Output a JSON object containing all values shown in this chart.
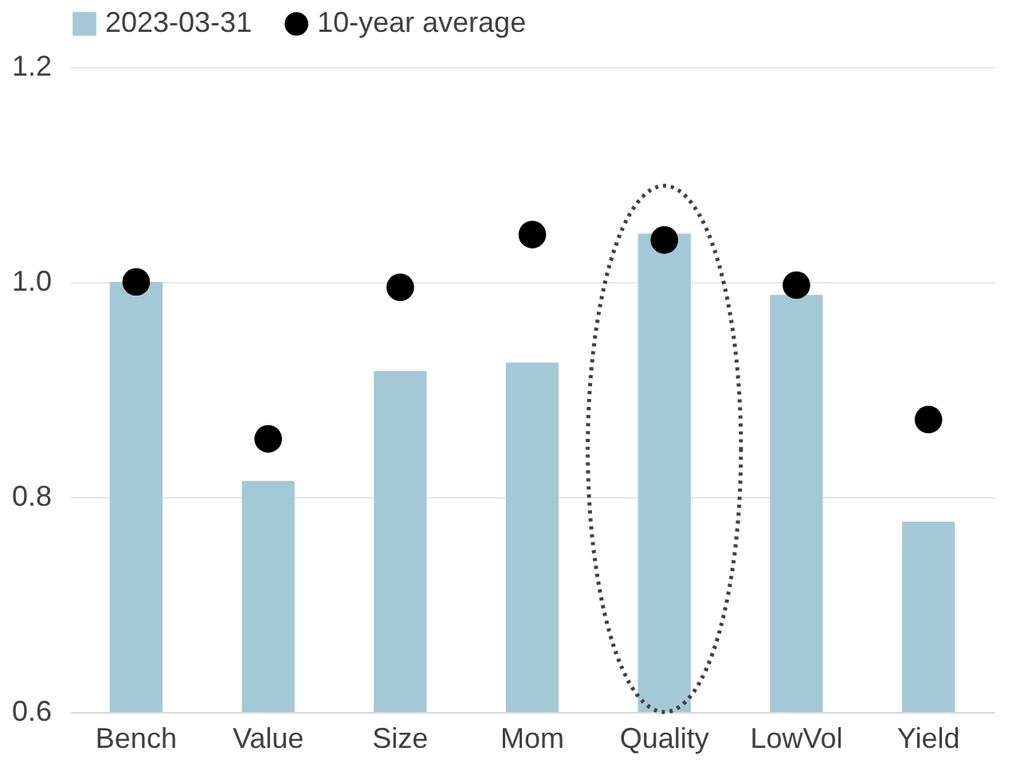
{
  "chart_data": {
    "type": "bar",
    "categories": [
      "Bench",
      "Value",
      "Size",
      "Mom",
      "Quality",
      "LowVol",
      "Yield"
    ],
    "series": [
      {
        "name": "2023-03-31",
        "color": "#a5c8d6",
        "values": [
          1.0,
          0.815,
          0.917,
          0.925,
          1.045,
          0.988,
          0.777
        ]
      },
      {
        "name": "10-year average",
        "type": "scatter",
        "color": "#000000",
        "values": [
          1.0,
          0.854,
          0.995,
          1.044,
          1.039,
          0.997,
          0.872
        ]
      }
    ],
    "ylim": [
      0.6,
      1.2
    ],
    "yticks": [
      {
        "value": 0.6,
        "label": "0.6"
      },
      {
        "value": 0.8,
        "label": "0.8"
      },
      {
        "value": 1.0,
        "label": "1.0"
      },
      {
        "value": 1.2,
        "label": "1.2"
      }
    ],
    "grid": "y",
    "legend": "top",
    "marker": "circle"
  }
}
